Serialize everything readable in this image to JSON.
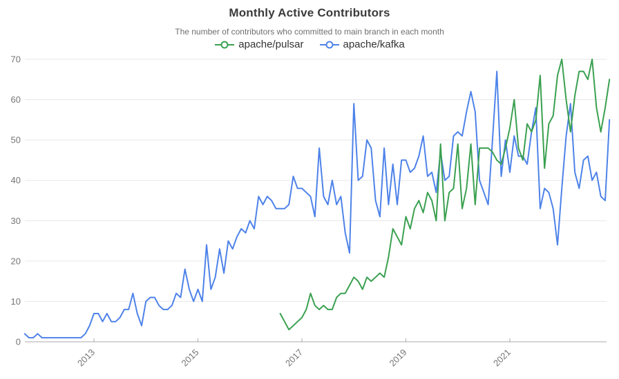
{
  "header": {
    "title": "Monthly Active Contributors",
    "subtitle": "The number of contributors who committed to main branch in each month"
  },
  "legend": [
    {
      "label": "apache/pulsar",
      "color": "#3aa050",
      "icon": "line-with-open-circle"
    },
    {
      "label": "apache/kafka",
      "color": "#4d82e9",
      "icon": "line-with-open-circle"
    }
  ],
  "colors": {
    "background": "#ffffff",
    "title_text": "#3b3b3b",
    "subtitle_text": "#6e6e6e",
    "axis_label_text": "#757575",
    "gridline": "#e7e7e7",
    "axis_line": "#aaaaaa",
    "pulsar_green": "#3aa050",
    "kafka_blue": "#4d82e9"
  },
  "chart_data": {
    "type": "line",
    "title": "Monthly Active Contributors",
    "subtitle": "The number of contributors who committed to main branch in each month",
    "xlabel": "",
    "ylabel": "",
    "x_unit": "month",
    "x_range_months": [
      "2011-09",
      "2022-12"
    ],
    "x_tick_labels": [
      "2013",
      "2015",
      "2017",
      "2019",
      "2021"
    ],
    "y_ticks": [
      0,
      10,
      20,
      30,
      40,
      50,
      60,
      70
    ],
    "ylim": [
      0,
      70
    ],
    "grid": true,
    "legend_position": "top",
    "series": [
      {
        "name": "apache/kafka",
        "color": "#4d82e9",
        "start_month": "2011-09",
        "values": [
          2,
          1,
          1,
          2,
          1,
          1,
          1,
          1,
          1,
          1,
          1,
          1,
          1,
          1,
          2,
          4,
          7,
          7,
          5,
          7,
          5,
          5,
          6,
          8,
          8,
          12,
          7,
          4,
          10,
          11,
          11,
          9,
          8,
          8,
          9,
          12,
          11,
          18,
          13,
          10,
          13,
          10,
          24,
          13,
          16,
          23,
          17,
          25,
          23,
          26,
          28,
          27,
          30,
          28,
          36,
          34,
          36,
          35,
          33,
          33,
          33,
          34,
          41,
          38,
          38,
          37,
          36,
          31,
          48,
          36,
          34,
          40,
          34,
          36,
          27,
          22,
          59,
          40,
          41,
          50,
          48,
          35,
          31,
          48,
          34,
          44,
          34,
          45,
          45,
          42,
          43,
          46,
          51,
          41,
          42,
          37,
          47,
          40,
          41,
          51,
          52,
          51,
          57,
          62,
          57,
          40,
          37,
          34,
          50,
          67,
          41,
          50,
          42,
          51,
          46,
          46,
          44,
          52,
          58,
          33,
          38,
          37,
          33,
          24,
          38,
          51,
          59,
          42,
          38,
          45,
          46,
          40,
          42,
          36,
          35,
          55
        ]
      },
      {
        "name": "apache/pulsar",
        "color": "#3aa050",
        "start_month": "2016-08",
        "values": [
          7,
          5,
          3,
          4,
          5,
          6,
          8,
          12,
          9,
          8,
          9,
          8,
          8,
          11,
          12,
          12,
          14,
          16,
          15,
          13,
          16,
          15,
          16,
          17,
          16,
          21,
          28,
          26,
          24,
          31,
          28,
          33,
          35,
          32,
          37,
          35,
          30,
          49,
          30,
          37,
          38,
          49,
          33,
          38,
          49,
          34,
          48,
          48,
          48,
          47,
          45,
          44,
          48,
          53,
          60,
          48,
          45,
          54,
          52,
          55,
          66,
          43,
          54,
          56,
          66,
          70,
          60,
          52,
          61,
          67,
          67,
          65,
          70,
          58,
          52,
          58,
          65
        ]
      }
    ]
  }
}
